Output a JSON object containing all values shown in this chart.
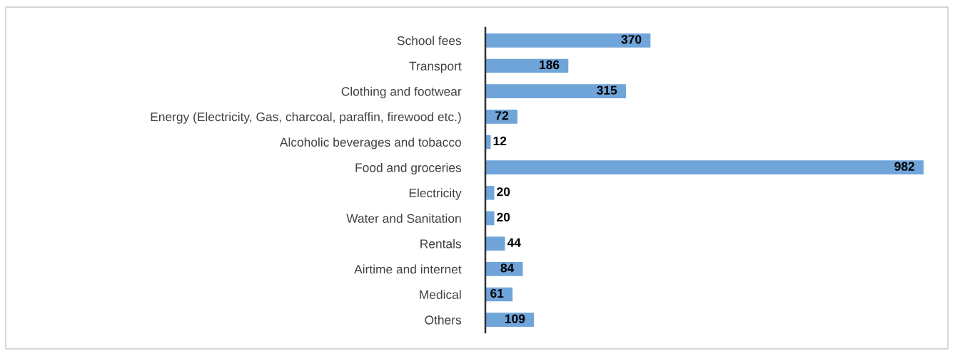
{
  "chart_data": {
    "type": "bar",
    "orientation": "horizontal",
    "categories": [
      "School fees",
      "Transport",
      "Clothing and footwear",
      "Energy (Electricity, Gas, charcoal, paraffin, firewood etc.)",
      "Alcoholic beverages and tobacco",
      "Food and groceries",
      "Electricity",
      "Water and Sanitation",
      "Rentals",
      "Airtime and internet",
      "Medical",
      "Others"
    ],
    "values": [
      370,
      186,
      315,
      72,
      12,
      982,
      20,
      20,
      44,
      84,
      61,
      109
    ],
    "color": "#70a5da",
    "data_labels": true,
    "grid": false,
    "legend": false,
    "tick_labels": "y"
  }
}
